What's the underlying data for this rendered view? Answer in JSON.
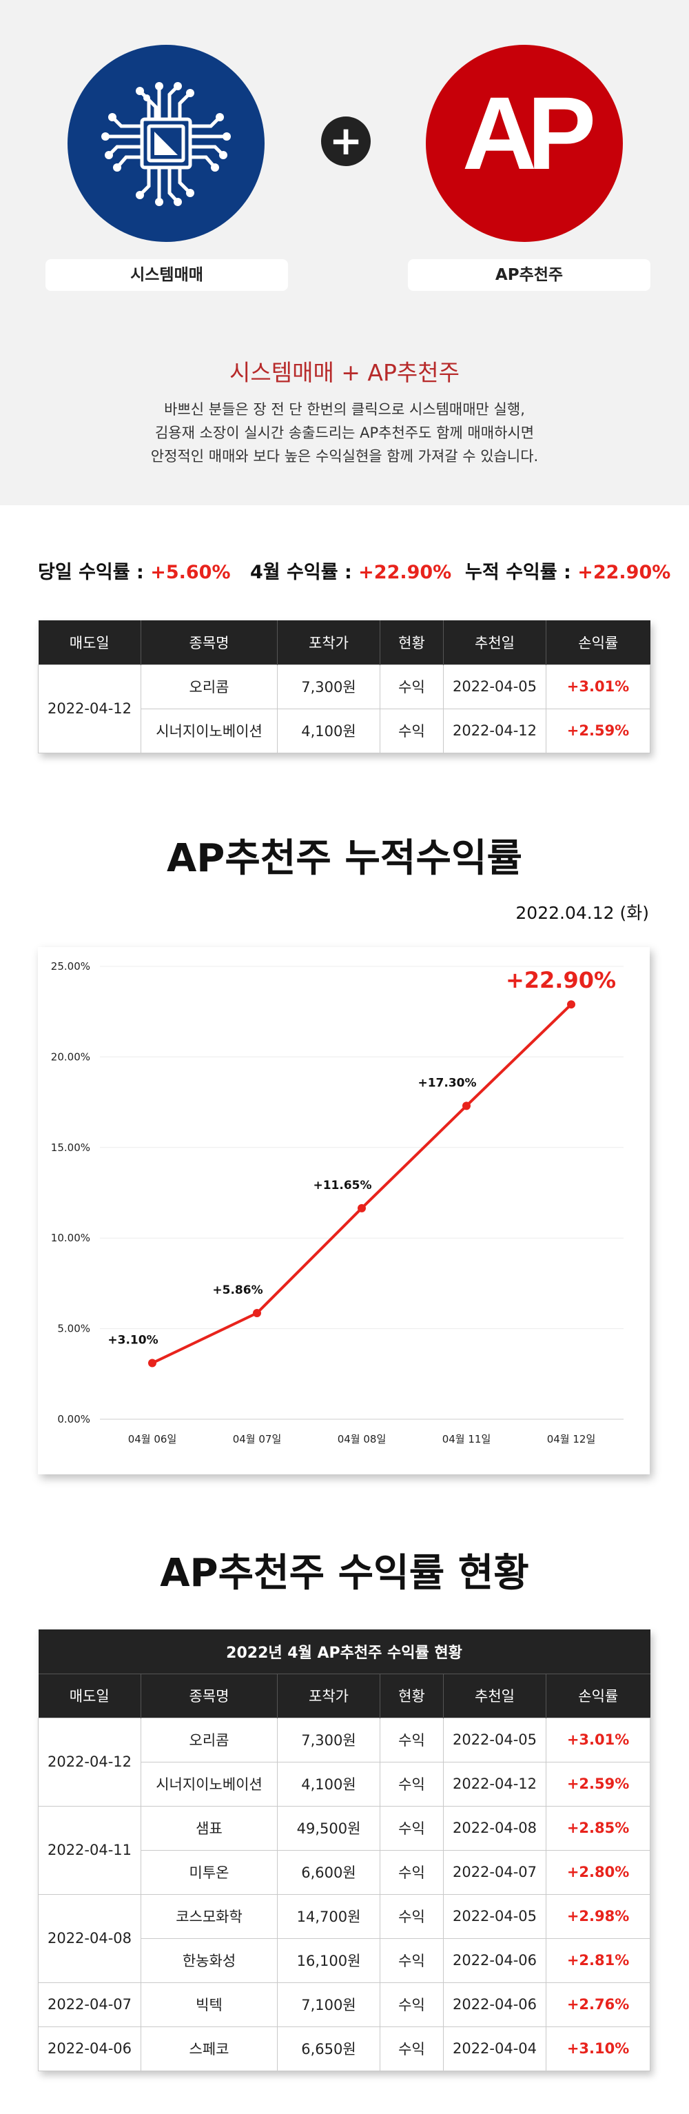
{
  "hero": {
    "left_label": "시스템매매",
    "right_label": "AP추천주",
    "plus": "+",
    "title": "시스템매매 + AP추천주",
    "desc_lines": [
      "바쁘신 분들은 장 전 단 한번의 클릭으로 시스템매매만 실행,",
      "김용재 소장이 실시간 송출드리는 AP추천주도 함께 매매하시면",
      "안정적인 매매와 보다 높은 수익실현을 함께 가져갈 수 있습니다."
    ],
    "right_logo_text": "AP",
    "colors": {
      "left_circle": "#0d3b82",
      "right_circle": "#c70009",
      "title": "#b72a2a"
    }
  },
  "yields": {
    "daily": {
      "label": "당일 수익률 : ",
      "value": "+5.60%"
    },
    "monthly": {
      "label": "4월 수익률 : ",
      "value": "+22.90%"
    },
    "cumulative": {
      "label": "누적 수익률 : ",
      "value": "+22.90%"
    }
  },
  "table_headers": [
    "매도일",
    "종목명",
    "포착가",
    "현황",
    "추천일",
    "손익률"
  ],
  "table1": [
    {
      "sell_date": "2022-04-12",
      "rows": [
        {
          "name": "오리콤",
          "price": "7,300원",
          "status": "수익",
          "rec_date": "2022-04-05",
          "pnl": "+3.01%"
        },
        {
          "name": "시너지이노베이션",
          "price": "4,100원",
          "status": "수익",
          "rec_date": "2022-04-12",
          "pnl": "+2.59%"
        }
      ]
    }
  ],
  "section1_title": "AP추천주 누적수익률",
  "date_label": "2022.04.12 (화)",
  "chart_data": {
    "type": "line",
    "categories": [
      "04월 06일",
      "04월 07일",
      "04월 08일",
      "04월 11일",
      "04월 12일"
    ],
    "series": [
      {
        "values": [
          3.1,
          5.86,
          11.65,
          17.3,
          22.9
        ]
      }
    ],
    "point_labels": [
      "+3.10%",
      "+5.86%",
      "+11.65%",
      "+17.30%",
      "+22.90%"
    ],
    "y_ticks": [
      "0.00%",
      "5.00%",
      "10.00%",
      "15.00%",
      "20.00%",
      "25.00%"
    ],
    "ylim": [
      0,
      25
    ],
    "grid": true,
    "line_color": "#e8231c",
    "title": "",
    "xlabel": "",
    "ylabel": ""
  },
  "section2_title": "AP추천주 수익률 현황",
  "table2_caption": "2022년 4월 AP추천주 수익률 현황",
  "table2": [
    {
      "sell_date": "2022-04-12",
      "rows": [
        {
          "name": "오리콤",
          "price": "7,300원",
          "status": "수익",
          "rec_date": "2022-04-05",
          "pnl": "+3.01%"
        },
        {
          "name": "시너지이노베이션",
          "price": "4,100원",
          "status": "수익",
          "rec_date": "2022-04-12",
          "pnl": "+2.59%"
        }
      ]
    },
    {
      "sell_date": "2022-04-11",
      "rows": [
        {
          "name": "샘표",
          "price": "49,500원",
          "status": "수익",
          "rec_date": "2022-04-08",
          "pnl": "+2.85%"
        },
        {
          "name": "미투온",
          "price": "6,600원",
          "status": "수익",
          "rec_date": "2022-04-07",
          "pnl": "+2.80%"
        }
      ]
    },
    {
      "sell_date": "2022-04-08",
      "rows": [
        {
          "name": "코스모화학",
          "price": "14,700원",
          "status": "수익",
          "rec_date": "2022-04-05",
          "pnl": "+2.98%"
        },
        {
          "name": "한농화성",
          "price": "16,100원",
          "status": "수익",
          "rec_date": "2022-04-06",
          "pnl": "+2.81%"
        }
      ]
    },
    {
      "sell_date": "2022-04-07",
      "rows": [
        {
          "name": "빅텍",
          "price": "7,100원",
          "status": "수익",
          "rec_date": "2022-04-06",
          "pnl": "+2.76%"
        }
      ]
    },
    {
      "sell_date": "2022-04-06",
      "rows": [
        {
          "name": "스페코",
          "price": "6,650원",
          "status": "수익",
          "rec_date": "2022-04-04",
          "pnl": "+3.10%"
        }
      ]
    }
  ]
}
